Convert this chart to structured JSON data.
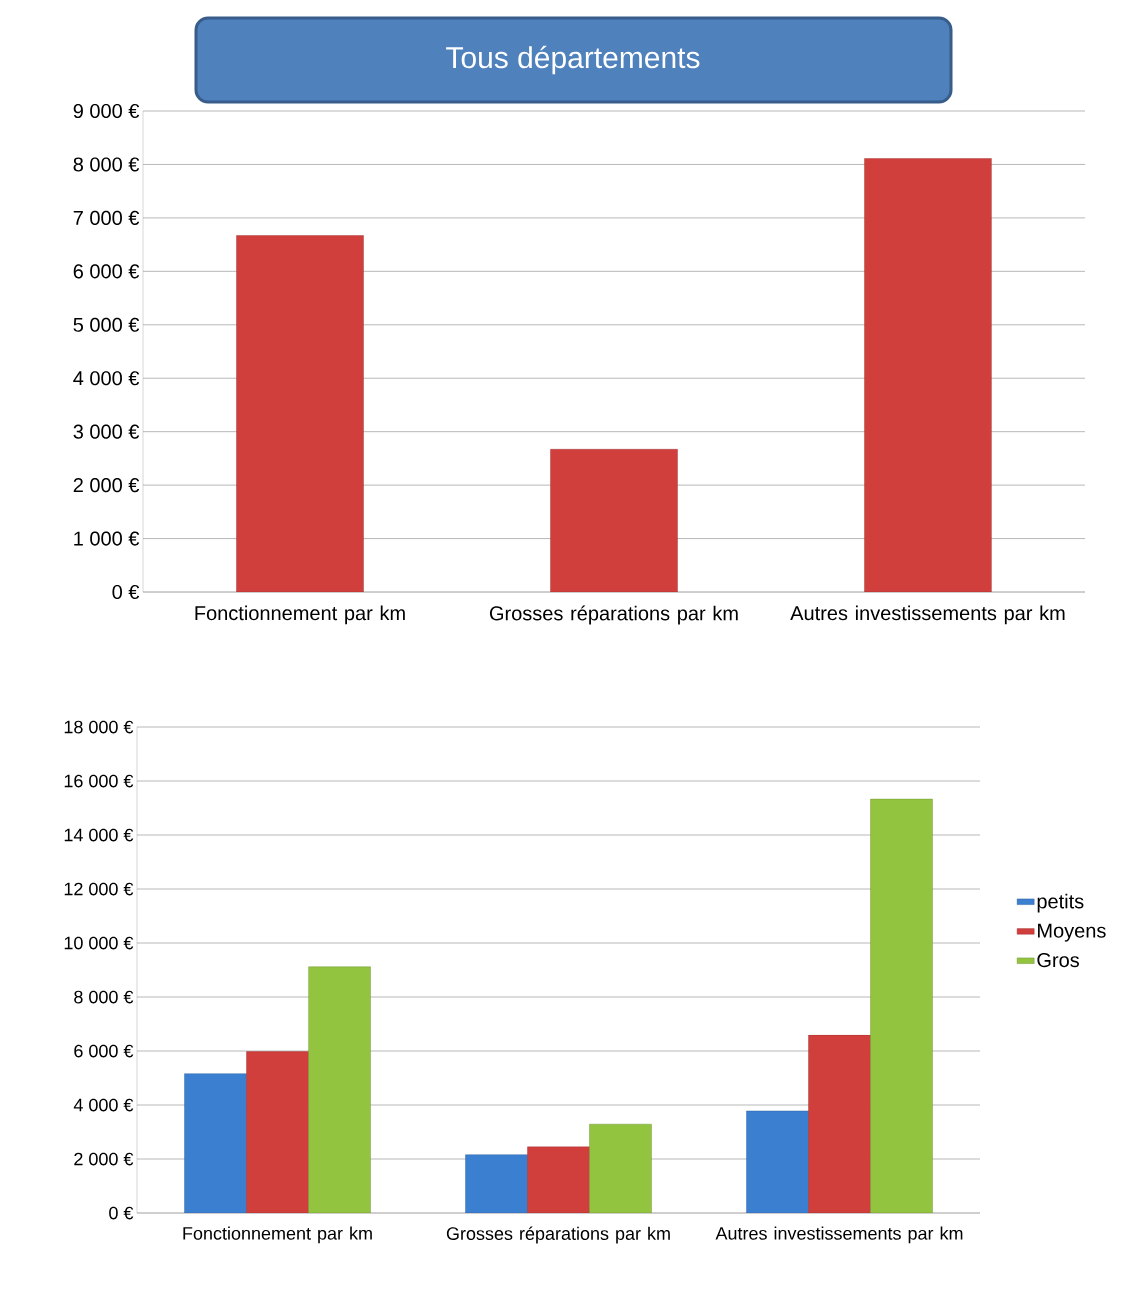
{
  "chart_data": [
    {
      "type": "bar",
      "title": "Tous départements",
      "categories": [
        "Fonctionnement par km",
        "Grosses réparations par km",
        "Autres investissements par km"
      ],
      "series": [
        {
          "color": "#d13f3c",
          "values": [
            6670,
            2670,
            8110
          ]
        }
      ],
      "ylim": [
        0,
        9000
      ],
      "yticks": [
        {
          "value": 0,
          "label": "0 €"
        },
        {
          "value": 1000,
          "label": "1 000 €"
        },
        {
          "value": 2000,
          "label": "2 000 €"
        },
        {
          "value": 3000,
          "label": "3 000 €"
        },
        {
          "value": 4000,
          "label": "4 000 €"
        },
        {
          "value": 5000,
          "label": "5 000 €"
        },
        {
          "value": 6000,
          "label": "6 000 €"
        },
        {
          "value": 7000,
          "label": "7 000 €"
        },
        {
          "value": 8000,
          "label": "8 000 €"
        },
        {
          "value": 9000,
          "label": "9 000 €"
        }
      ],
      "grid": "y"
    },
    {
      "type": "bar",
      "categories": [
        "Fonctionnement par km",
        "Grosses réparations par km",
        "Autres investissements par km"
      ],
      "series": [
        {
          "name": "petits",
          "color": "#3b7fd1",
          "values": [
            5160,
            2160,
            3780
          ]
        },
        {
          "name": "Moyens",
          "color": "#d13f3c",
          "values": [
            5980,
            2450,
            6590
          ]
        },
        {
          "name": "Gros",
          "color": "#93c43f",
          "values": [
            9120,
            3290,
            15330
          ]
        }
      ],
      "ylim": [
        0,
        18000
      ],
      "yticks": [
        {
          "value": 0,
          "label": "0 €"
        },
        {
          "value": 2000,
          "label": "2 000 €"
        },
        {
          "value": 4000,
          "label": "4 000 €"
        },
        {
          "value": 6000,
          "label": "6 000 €"
        },
        {
          "value": 8000,
          "label": "8 000 €"
        },
        {
          "value": 10000,
          "label": "10 000 €"
        },
        {
          "value": 12000,
          "label": "12 000 €"
        },
        {
          "value": 14000,
          "label": "14 000 €"
        },
        {
          "value": 16000,
          "label": "16 000 €"
        },
        {
          "value": 18000,
          "label": "18 000 €"
        }
      ],
      "grid": "y",
      "legend": "right"
    }
  ]
}
